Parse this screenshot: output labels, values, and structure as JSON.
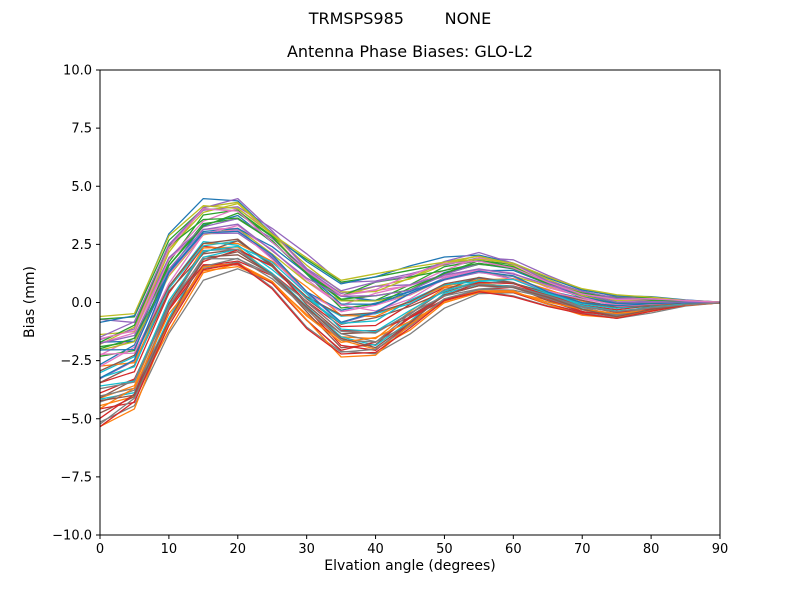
{
  "chart_data": {
    "type": "line",
    "suptitle": "TRMSPS985        NONE",
    "title": "Antenna Phase Biases: GLO-L2",
    "xlabel": "Elvation angle (degrees)",
    "ylabel": "Bias (mm)",
    "xlim": [
      0,
      90
    ],
    "ylim": [
      -10.0,
      10.0
    ],
    "xticks": [
      0,
      10,
      20,
      30,
      40,
      50,
      60,
      70,
      80,
      90
    ],
    "yticks": [
      -10.0,
      -7.5,
      -5.0,
      -2.5,
      0.0,
      2.5,
      5.0,
      7.5,
      10.0
    ],
    "yticklabels": [
      "−10.0",
      "−7.5",
      "−5.0",
      "−2.5",
      "0.0",
      "2.5",
      "5.0",
      "7.5",
      "10.0"
    ],
    "grid": false,
    "legend": "none",
    "x": [
      0,
      5,
      10,
      15,
      20,
      25,
      30,
      35,
      40,
      45,
      50,
      55,
      60,
      65,
      70,
      75,
      80,
      85,
      90
    ],
    "band_mean": [
      -3.0,
      -2.5,
      0.8,
      2.7,
      2.9,
      1.9,
      0.5,
      -0.65,
      -0.55,
      0.1,
      0.85,
      1.2,
      1.05,
      0.5,
      0.05,
      -0.2,
      -0.1,
      -0.02,
      0.0
    ],
    "band_halfwidth": [
      2.2,
      2.0,
      2.0,
      1.5,
      1.5,
      1.3,
      1.4,
      1.55,
      1.75,
      1.3,
      0.95,
      0.9,
      0.75,
      0.6,
      0.55,
      0.5,
      0.3,
      0.12,
      0.02
    ],
    "n_series": 48,
    "series_offsets": [
      0.15,
      -0.82,
      0.55,
      -0.3,
      0.92,
      -0.62,
      0.35,
      -0.97,
      0.72,
      -0.12,
      0.48,
      -0.45,
      0.88,
      -0.72,
      0.05,
      -0.25,
      0.65,
      -0.9,
      0.25,
      -0.55,
      0.98,
      -0.05,
      0.42,
      -0.78,
      0.58,
      -0.35,
      0.12,
      -0.65,
      0.78,
      -0.18,
      0.32,
      -0.88,
      0.62,
      -0.42,
      0.85,
      -0.08,
      0.22,
      -0.52,
      0.95,
      -0.28,
      0.08,
      -0.75,
      0.52,
      -0.95,
      0.38,
      -0.6,
      0.68,
      -0.48
    ],
    "colors": [
      "#1f77b4",
      "#ff7f0e",
      "#2ca02c",
      "#d62728",
      "#9467bd",
      "#8c564b",
      "#e377c2",
      "#7f7f7f",
      "#bcbd22",
      "#17becf"
    ],
    "axis_color": "#000000",
    "background_color": "#ffffff"
  }
}
